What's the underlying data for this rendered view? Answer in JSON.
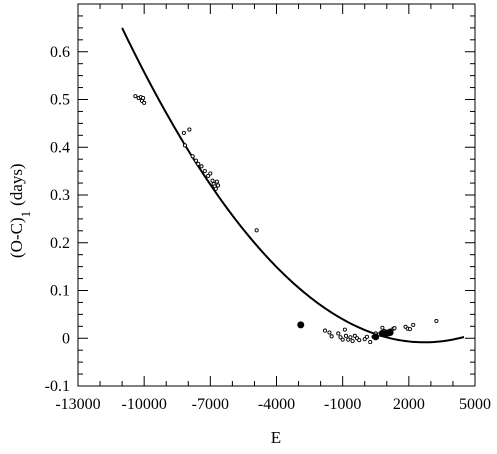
{
  "chart_data": {
    "type": "scatter",
    "xlabel": "E",
    "ylabel": "(O-C)",
    "ylabel_subscript": "1",
    "ylabel_unit": "(days)",
    "xlim": [
      -13000,
      5000
    ],
    "ylim": [
      -0.1,
      0.7
    ],
    "xticks": [
      -13000,
      -10000,
      -7000,
      -4000,
      -1000,
      2000,
      5000
    ],
    "xtick_labels": [
      "-13000",
      "-10000",
      "-7000",
      "-4000",
      "-1000",
      "2000",
      "5000"
    ],
    "yticks": [
      -0.1,
      0,
      0.1,
      0.2,
      0.3,
      0.4,
      0.5,
      0.6
    ],
    "ytick_labels": [
      "-0.1",
      "0",
      "0.1",
      "0.2",
      "0.3",
      "0.4",
      "0.5",
      "0.6"
    ],
    "grid": false,
    "series": [
      {
        "marker": "open-circle",
        "color": "#000000",
        "points": [
          [
            -10400,
            0.507
          ],
          [
            -10250,
            0.503
          ],
          [
            -10150,
            0.505
          ],
          [
            -10100,
            0.497
          ],
          [
            -10050,
            0.503
          ],
          [
            -10000,
            0.493
          ],
          [
            -8200,
            0.43
          ],
          [
            -7950,
            0.437
          ],
          [
            -8150,
            0.404
          ],
          [
            -7800,
            0.381
          ],
          [
            -7650,
            0.372
          ],
          [
            -7550,
            0.365
          ],
          [
            -7400,
            0.36
          ],
          [
            -7250,
            0.35
          ],
          [
            -7100,
            0.34
          ],
          [
            -7000,
            0.345
          ],
          [
            -6900,
            0.33
          ],
          [
            -6850,
            0.323
          ],
          [
            -6800,
            0.318
          ],
          [
            -6750,
            0.313
          ],
          [
            -6700,
            0.328
          ],
          [
            -6650,
            0.32
          ],
          [
            -4900,
            0.226
          ],
          [
            -1800,
            0.016
          ],
          [
            -1600,
            0.012
          ],
          [
            -1500,
            0.004
          ],
          [
            -1200,
            0.01
          ],
          [
            -1100,
            0.002
          ],
          [
            -1000,
            -0.003
          ],
          [
            -900,
            0.018
          ],
          [
            -850,
            0.005
          ],
          [
            -750,
            -0.003
          ],
          [
            -650,
            0.002
          ],
          [
            -550,
            -0.006
          ],
          [
            -450,
            0.005
          ],
          [
            -350,
            0.0
          ],
          [
            -250,
            -0.004
          ],
          [
            0,
            -0.002
          ],
          [
            100,
            0.003
          ],
          [
            250,
            -0.008
          ],
          [
            400,
            0.003
          ],
          [
            500,
            0.01
          ],
          [
            650,
            0.008
          ],
          [
            750,
            0.012
          ],
          [
            800,
            0.022
          ],
          [
            900,
            0.015
          ],
          [
            1150,
            0.016
          ],
          [
            1300,
            0.02
          ],
          [
            1350,
            0.021
          ],
          [
            1850,
            0.024
          ],
          [
            1950,
            0.02
          ],
          [
            2050,
            0.019
          ],
          [
            2200,
            0.028
          ],
          [
            3250,
            0.036
          ]
        ]
      },
      {
        "marker": "filled-circle",
        "color": "#000000",
        "points": [
          [
            -2900,
            0.028
          ],
          [
            500,
            0.003
          ],
          [
            800,
            0.01
          ],
          [
            950,
            0.01
          ],
          [
            1050,
            0.011
          ],
          [
            1150,
            0.012
          ]
        ]
      },
      {
        "marker": "line",
        "color": "#000000",
        "fit": {
          "form": "quadratic",
          "vertex_x": 2715,
          "vertex_y": -0.0085,
          "curvature": 3.5e-09,
          "x_range": [
            -11000,
            4500
          ]
        }
      }
    ]
  }
}
